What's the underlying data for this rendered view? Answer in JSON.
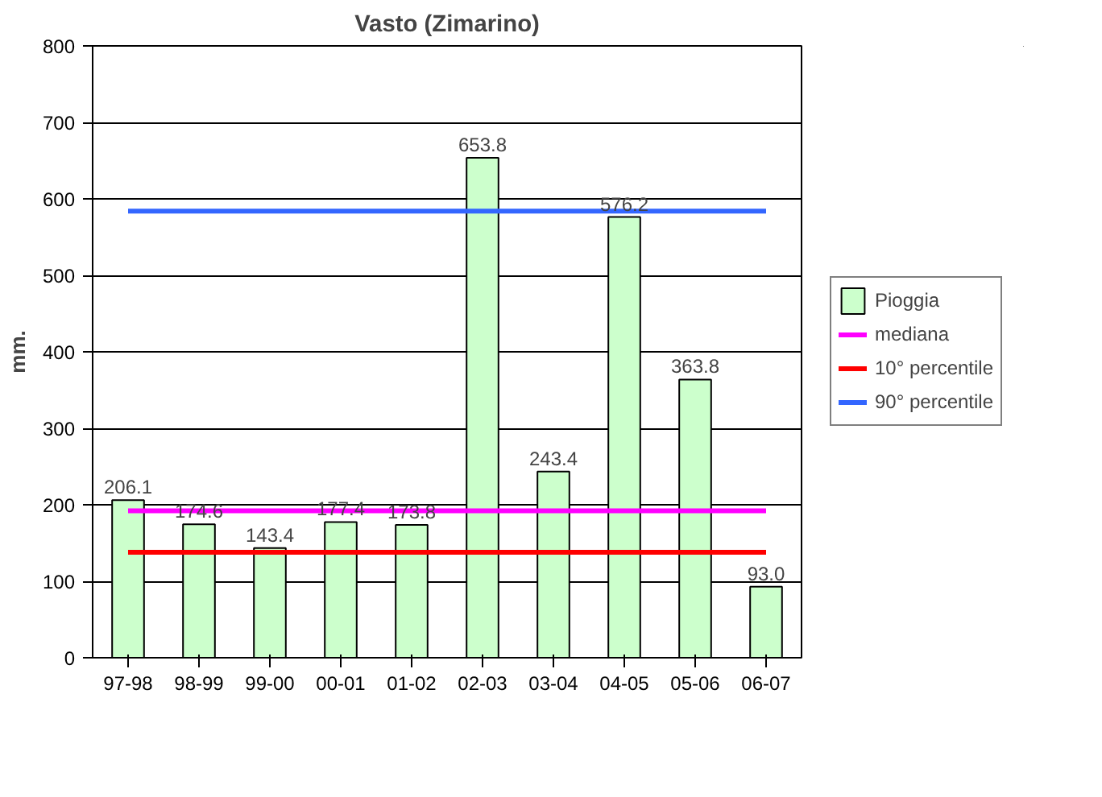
{
  "chart_data": {
    "type": "bar",
    "title": "Vasto (Zimarino)",
    "ylabel": "mm.",
    "categories": [
      "97-98",
      "98-99",
      "99-00",
      "00-01",
      "01-02",
      "02-03",
      "03-04",
      "04-05",
      "05-06",
      "06-07"
    ],
    "series": [
      {
        "name": "Pioggia",
        "color": "#ccffcc",
        "values": [
          206.1,
          174.6,
          143.4,
          177.4,
          173.8,
          653.8,
          243.4,
          576.2,
          363.8,
          93.0
        ],
        "value_labels": [
          "206.1",
          "174.6",
          "143.4",
          "177.4",
          "173.8",
          "653.8",
          "243.4",
          "576.2",
          "363.8",
          "93.0"
        ]
      },
      {
        "name": "mediana",
        "type": "line",
        "color": "#ff00ff",
        "values": [
          192,
          192,
          192,
          192,
          192,
          192,
          192,
          192,
          192,
          192
        ]
      },
      {
        "name": "10° percentile",
        "type": "line",
        "color": "#ff0000",
        "values": [
          138,
          138,
          138,
          138,
          138,
          138,
          138,
          138,
          138,
          138
        ]
      },
      {
        "name": "90° percentile",
        "type": "line",
        "color": "#3366ff",
        "values": [
          584,
          584,
          584,
          584,
          584,
          584,
          584,
          584,
          584,
          584
        ]
      }
    ],
    "ylim": [
      0,
      800
    ],
    "yticks": [
      0,
      100,
      200,
      300,
      400,
      500,
      600,
      700,
      800
    ],
    "grid": "y",
    "legend": "right",
    "marker": "none",
    "line_style": "solid"
  }
}
